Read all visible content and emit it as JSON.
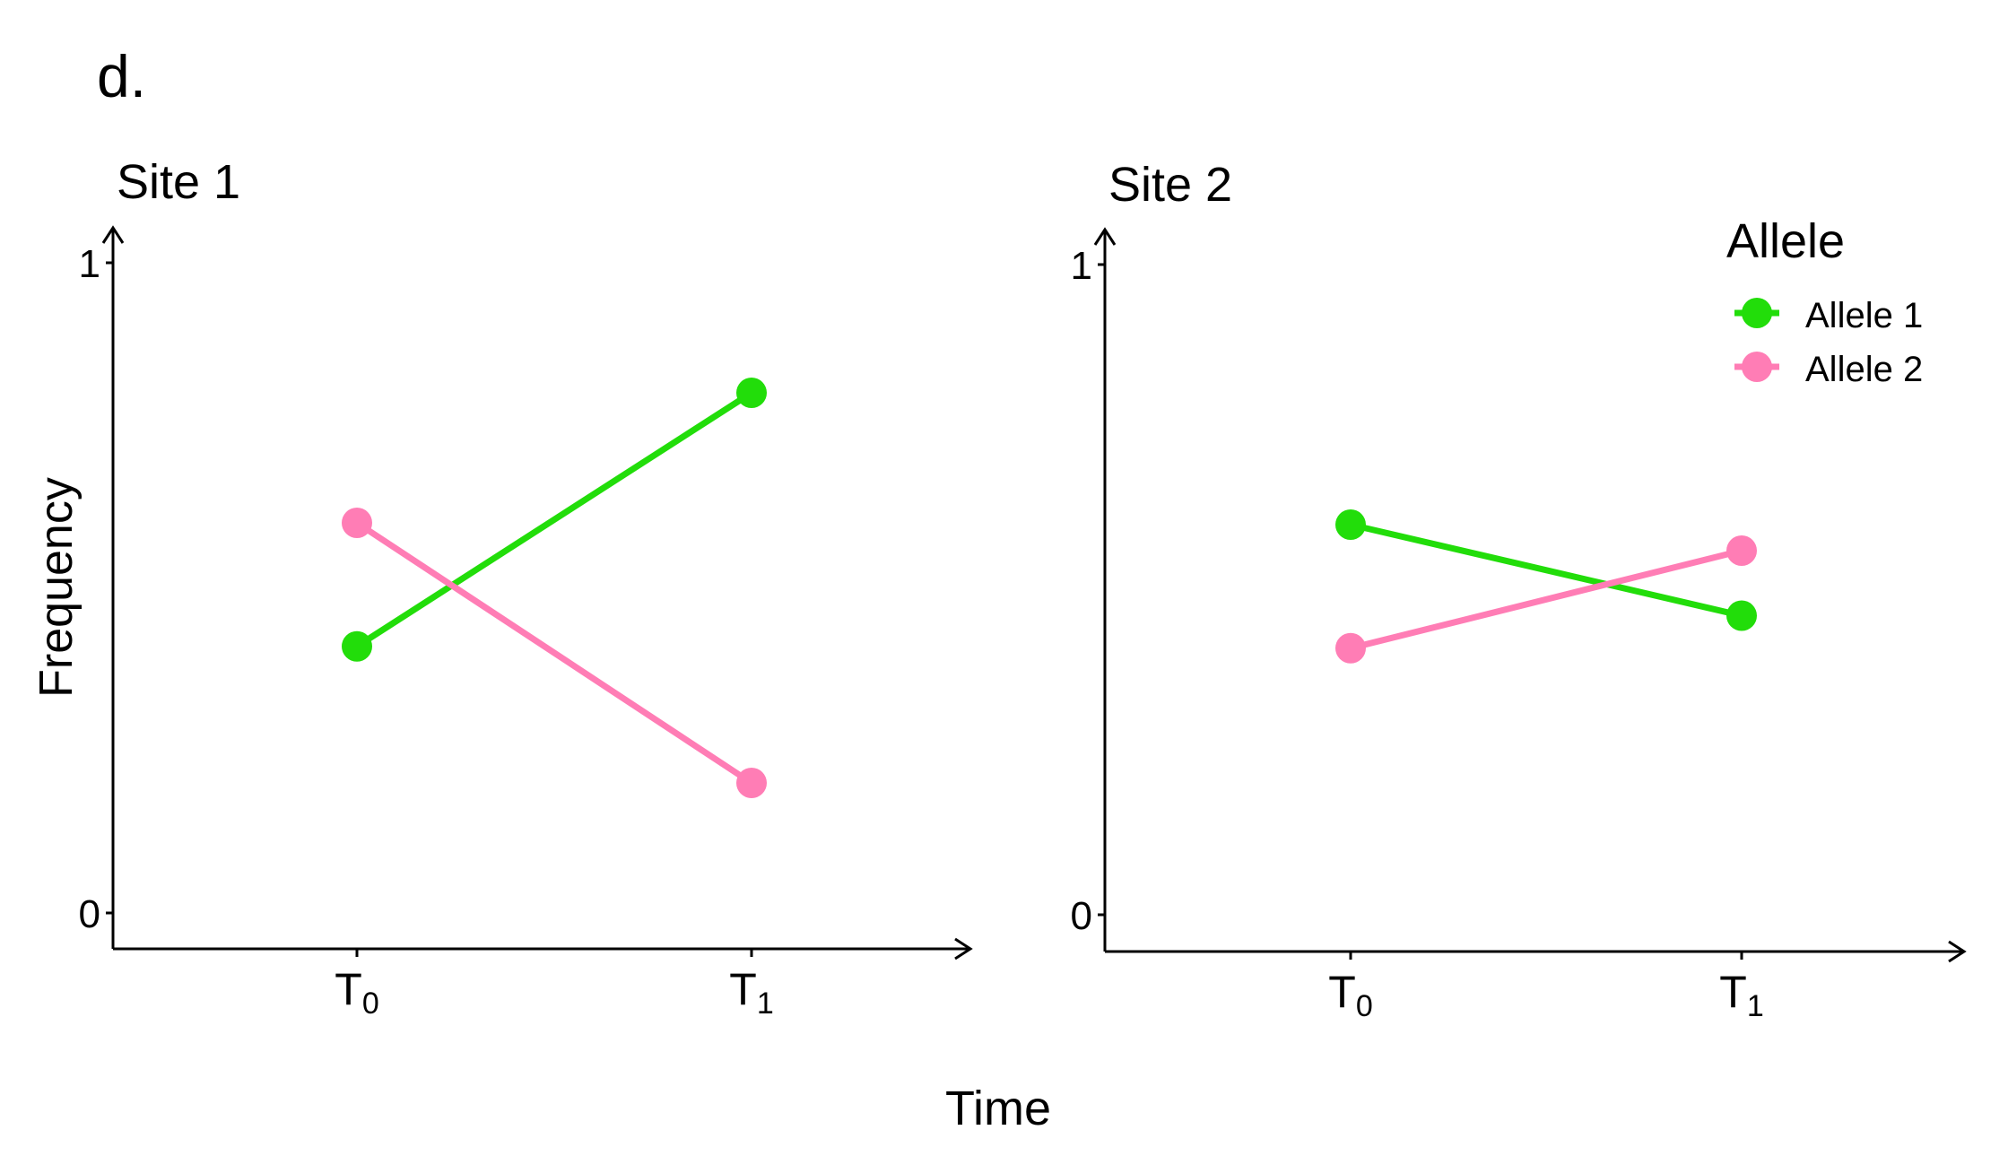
{
  "panel_label": "d.",
  "ylabel": "Frequency",
  "xlabel": "Time",
  "legend": {
    "title": "Allele",
    "items": [
      {
        "label": "Allele 1",
        "color": "#22DD0A"
      },
      {
        "label": "Allele 2",
        "color": "#FF7DB5"
      }
    ]
  },
  "chart_data": [
    {
      "type": "line",
      "title": "Site 1",
      "categories": [
        {
          "base": "T",
          "sub": "0"
        },
        {
          "base": "T",
          "sub": "1"
        }
      ],
      "ylim": [
        0,
        1
      ],
      "yticks": [
        "0",
        "1"
      ],
      "grid": false,
      "series": [
        {
          "name": "Allele 1",
          "color": "#22DD0A",
          "values": [
            0.41,
            0.8
          ]
        },
        {
          "name": "Allele 2",
          "color": "#FF7DB5",
          "values": [
            0.6,
            0.2
          ]
        }
      ]
    },
    {
      "type": "line",
      "title": "Site 2",
      "categories": [
        {
          "base": "T",
          "sub": "0"
        },
        {
          "base": "T",
          "sub": "1"
        }
      ],
      "ylim": [
        0,
        1
      ],
      "yticks": [
        "0",
        "1"
      ],
      "grid": false,
      "legend_position": "top-right",
      "series": [
        {
          "name": "Allele 1",
          "color": "#22DD0A",
          "values": [
            0.6,
            0.46
          ]
        },
        {
          "name": "Allele 2",
          "color": "#FF7DB5",
          "values": [
            0.41,
            0.56
          ]
        }
      ]
    }
  ]
}
